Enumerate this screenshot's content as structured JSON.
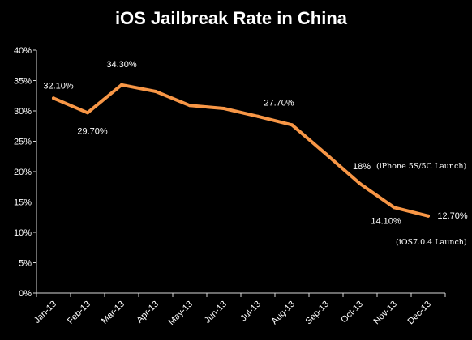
{
  "chart_data": {
    "type": "line",
    "title": "iOS Jailbreak Rate in China",
    "xlabel": "",
    "ylabel": "",
    "ylim": [
      0,
      40
    ],
    "y_ticks": [
      "0%",
      "5%",
      "10%",
      "15%",
      "20%",
      "25%",
      "30%",
      "35%",
      "40%"
    ],
    "categories": [
      "Jan-13",
      "Feb-13",
      "Mar-13",
      "Apr-13",
      "May-13",
      "Jun-13",
      "Jul-13",
      "Aug-13",
      "Sep-13",
      "Oct-13",
      "Nov-13",
      "Dec-13"
    ],
    "grid": false,
    "legend": "none",
    "series": [
      {
        "values": [
          32.1,
          29.7,
          34.3,
          33.2,
          30.9,
          30.4,
          29.1,
          27.7,
          22.9,
          18.0,
          14.1,
          12.7
        ],
        "color": "#f79646"
      }
    ],
    "data_labels": [
      {
        "index": 0,
        "text": "32.10%"
      },
      {
        "index": 1,
        "text": "29.70%"
      },
      {
        "index": 2,
        "text": "34.30%"
      },
      {
        "index": 7,
        "text": "27.70%"
      },
      {
        "index": 9,
        "text": "18%"
      },
      {
        "index": 10,
        "text": "14.10%"
      },
      {
        "index": 11,
        "text": "12.70%"
      }
    ],
    "annotations": [
      {
        "index": 9,
        "text": "(iPhone 5S/5C Launch)"
      },
      {
        "index": 11,
        "text": "(iOS7.0.4 Launch)"
      }
    ]
  },
  "colors": {
    "background": "#000000",
    "text": "#ffffff",
    "axis": "#d9d9d9",
    "line": "#f79646"
  }
}
